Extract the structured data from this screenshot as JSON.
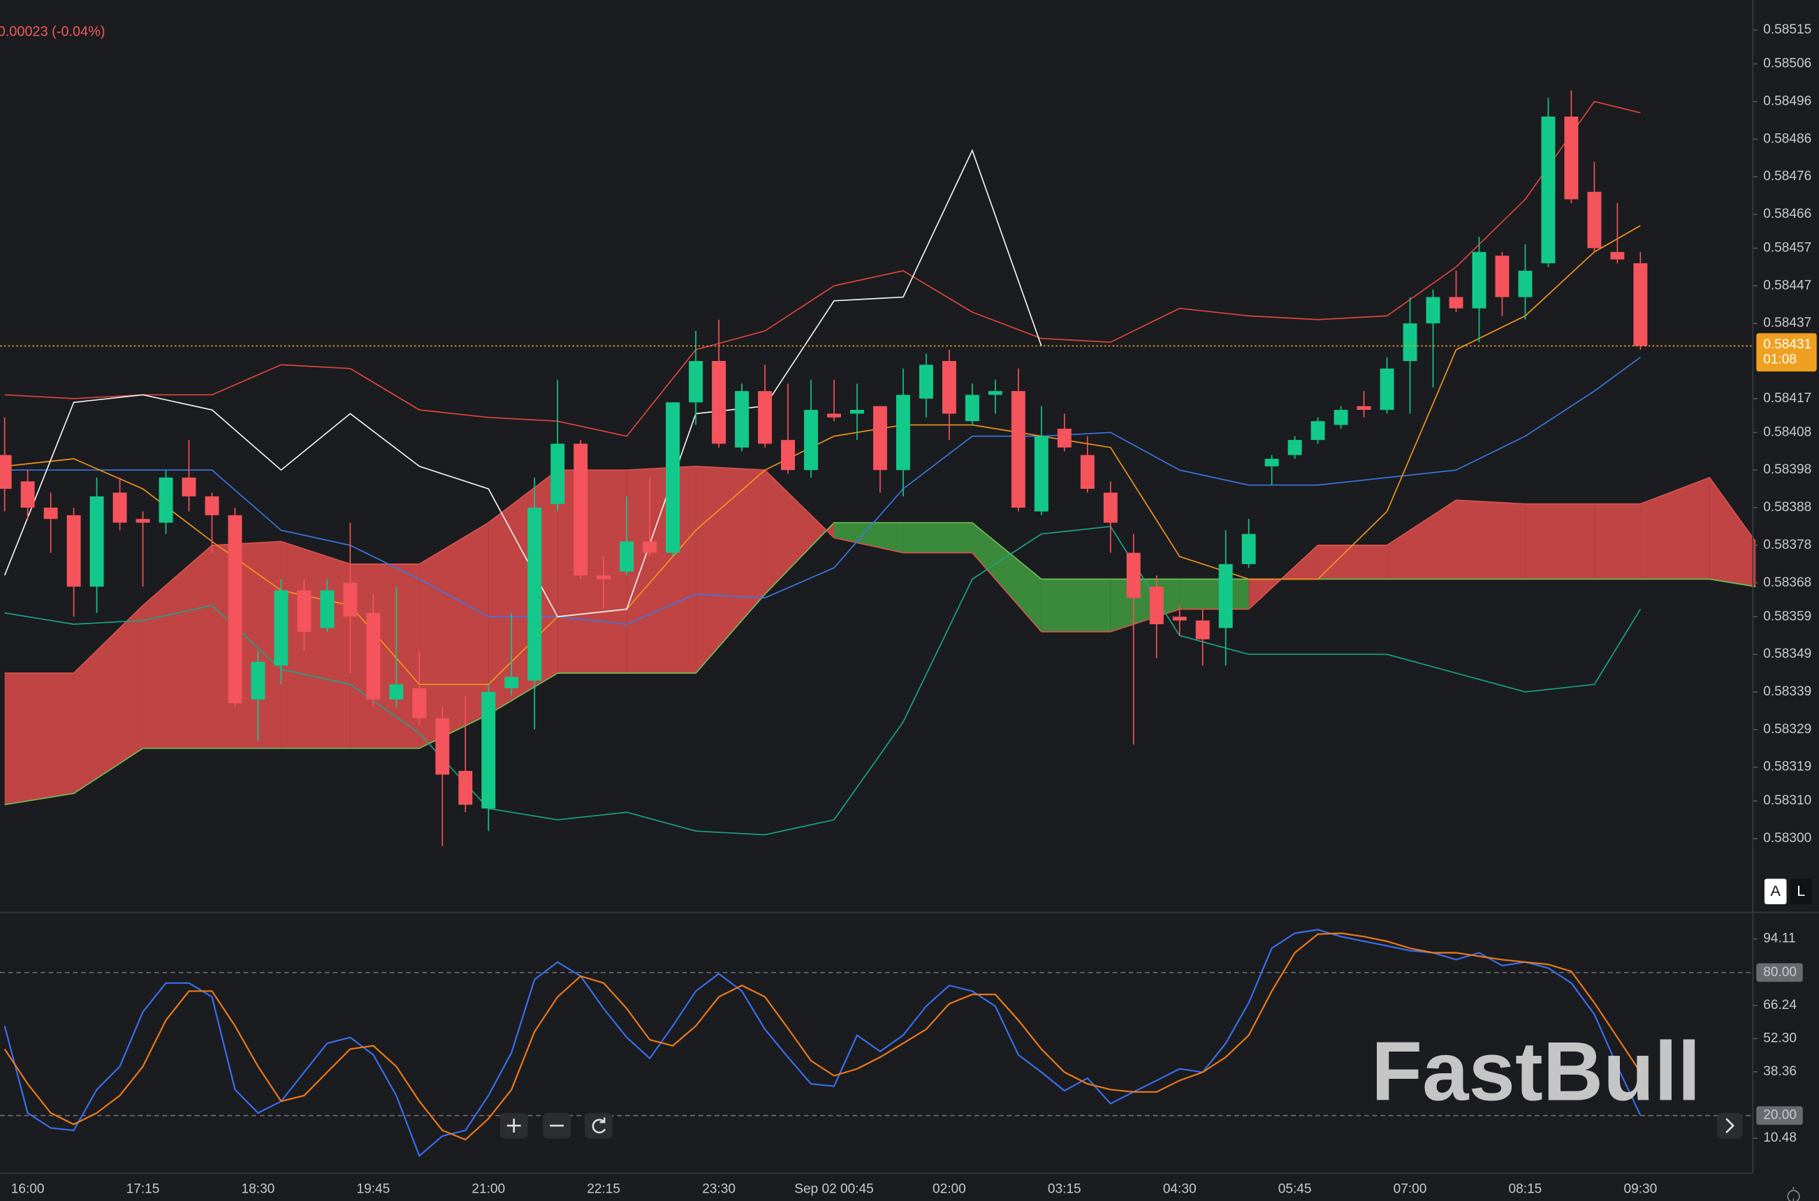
{
  "header": {
    "change": "0.00023 (-0.04%)"
  },
  "watermark": "FastBull",
  "scale_buttons": [
    "A",
    "L"
  ],
  "chart_data": [
    {
      "type": "candlestick",
      "categories": [
        null,
        "16:00",
        null,
        null,
        null,
        null,
        "17:15",
        null,
        null,
        null,
        null,
        "18:30",
        null,
        null,
        null,
        null,
        "19:45",
        null,
        null,
        null,
        null,
        "21:00",
        null,
        null,
        null,
        null,
        "22:15",
        null,
        null,
        null,
        null,
        "23:30",
        null,
        null,
        null,
        null,
        "Sep 02 00:45",
        null,
        null,
        null,
        null,
        "02:00",
        null,
        null,
        null,
        null,
        "03:15",
        null,
        null,
        null,
        null,
        "04:30",
        null,
        null,
        null,
        null,
        "05:45",
        null,
        null,
        null,
        null,
        "07:00",
        null,
        null,
        null,
        null,
        "08:15",
        null,
        null,
        null,
        null,
        "09:30"
      ],
      "open": [
        0.58402,
        0.58395,
        0.58388,
        0.58386,
        0.58367,
        0.58392,
        0.58385,
        0.58384,
        0.58396,
        0.58391,
        0.58386,
        0.58337,
        0.58346,
        0.58366,
        0.58356,
        0.58368,
        0.5836,
        0.58337,
        0.5834,
        0.58332,
        0.58318,
        0.58308,
        0.5834,
        0.58342,
        0.58389,
        0.58405,
        0.5837,
        0.58371,
        0.58379,
        0.58376,
        0.58416,
        0.58427,
        0.58404,
        0.58419,
        0.58406,
        0.58398,
        0.58413,
        0.58413,
        0.58415,
        0.58398,
        0.58417,
        0.58427,
        0.58411,
        0.58418,
        0.58419,
        0.58387,
        0.58409,
        0.58402,
        0.58392,
        0.58376,
        0.58367,
        0.58359,
        0.58358,
        0.58356,
        0.58373,
        0.58399,
        0.58402,
        0.58406,
        0.5841,
        0.58415,
        0.58414,
        0.58427,
        0.58437,
        0.58444,
        0.58441,
        0.58455,
        0.58444,
        0.58453,
        0.58492,
        0.58472,
        0.58456,
        0.58453
      ],
      "high": [
        0.58412,
        0.58398,
        0.58392,
        0.58388,
        0.58396,
        0.58396,
        0.58387,
        0.58398,
        0.58406,
        0.58392,
        0.58388,
        0.5835,
        0.58369,
        0.58369,
        0.58369,
        0.58384,
        0.58365,
        0.58367,
        0.5835,
        0.58335,
        0.58338,
        0.58341,
        0.5836,
        0.58396,
        0.58422,
        0.58406,
        0.58375,
        0.58391,
        0.58396,
        0.58416,
        0.58435,
        0.58438,
        0.58421,
        0.58426,
        0.58421,
        0.58422,
        0.58422,
        0.58421,
        0.58415,
        0.58425,
        0.58429,
        0.5843,
        0.58421,
        0.58422,
        0.58425,
        0.58415,
        0.58413,
        0.58407,
        0.58395,
        0.58381,
        0.5837,
        0.58362,
        0.58361,
        0.58382,
        0.58385,
        0.58402,
        0.58407,
        0.58412,
        0.58415,
        0.58419,
        0.58428,
        0.58444,
        0.58446,
        0.58451,
        0.5846,
        0.58456,
        0.58458,
        0.58497,
        0.58499,
        0.5848,
        0.58469,
        0.58456
      ],
      "low": [
        0.58387,
        0.58385,
        0.58376,
        0.58359,
        0.5836,
        0.58382,
        0.58367,
        0.58381,
        0.58387,
        0.58376,
        0.58335,
        0.58326,
        0.58341,
        0.5835,
        0.58355,
        0.58344,
        0.58335,
        0.58335,
        0.5833,
        0.58298,
        0.58307,
        0.58302,
        0.58338,
        0.58329,
        0.58387,
        0.58369,
        0.58361,
        0.5837,
        0.58375,
        0.58375,
        0.5841,
        0.58404,
        0.58403,
        0.58404,
        0.58397,
        0.58396,
        0.58411,
        0.58406,
        0.58392,
        0.58391,
        0.58412,
        0.58406,
        0.5841,
        0.58413,
        0.58387,
        0.58386,
        0.58403,
        0.58392,
        0.58376,
        0.58325,
        0.58348,
        0.58354,
        0.58346,
        0.58346,
        0.58372,
        0.58394,
        0.58401,
        0.58405,
        0.58409,
        0.58412,
        0.58413,
        0.58413,
        0.5842,
        0.5844,
        0.58432,
        0.58439,
        0.58438,
        0.58452,
        0.58469,
        0.58456,
        0.58453,
        0.5843
      ],
      "close": [
        0.58393,
        0.58388,
        0.58385,
        0.58367,
        0.58391,
        0.58384,
        0.58384,
        0.58396,
        0.58391,
        0.58386,
        0.58336,
        0.58347,
        0.58366,
        0.58355,
        0.58366,
        0.58359,
        0.58337,
        0.58341,
        0.58332,
        0.58317,
        0.58309,
        0.58339,
        0.58343,
        0.58388,
        0.58405,
        0.5837,
        0.58369,
        0.58379,
        0.58376,
        0.58416,
        0.58427,
        0.58405,
        0.58419,
        0.58405,
        0.58398,
        0.58414,
        0.58412,
        0.58414,
        0.58398,
        0.58418,
        0.58426,
        0.58413,
        0.58418,
        0.58419,
        0.58388,
        0.58407,
        0.58404,
        0.58393,
        0.58384,
        0.58364,
        0.58357,
        0.58358,
        0.58353,
        0.58373,
        0.58381,
        0.58401,
        0.58406,
        0.58411,
        0.58414,
        0.58414,
        0.58425,
        0.58437,
        0.58444,
        0.58441,
        0.58456,
        0.58444,
        0.58451,
        0.58492,
        0.5847,
        0.58457,
        0.58454,
        0.58431
      ],
      "up_color": "#13c98a",
      "down_color": "#f5545c",
      "overlay_x": [
        0,
        3,
        6,
        9,
        12,
        15,
        18,
        21,
        24,
        27,
        30,
        33,
        36,
        39,
        42,
        45,
        48,
        51,
        54,
        57,
        60,
        63,
        66,
        69,
        71,
        74,
        76
      ],
      "lines": [
        {
          "color": "#e0463e",
          "values": [
            0.58418,
            0.58417,
            0.58418,
            0.58418,
            0.58426,
            0.58425,
            0.58414,
            0.58412,
            0.58411,
            0.58407,
            0.5843,
            0.58435,
            0.58447,
            0.58451,
            0.5844,
            0.58433,
            0.58432,
            0.58441,
            0.58439,
            0.58438,
            0.58439,
            0.58452,
            0.5847,
            0.58496,
            0.58493,
            null,
            null
          ]
        },
        {
          "color": "#1aa58a",
          "values": [
            0.5836,
            0.58357,
            0.58358,
            0.58362,
            0.58345,
            0.58341,
            0.58328,
            0.58308,
            0.58305,
            0.58307,
            0.58302,
            0.58301,
            0.58305,
            0.58331,
            0.58369,
            0.58381,
            0.58383,
            0.58354,
            0.58349,
            0.58349,
            0.58349,
            0.58344,
            0.58339,
            0.58341,
            0.58361,
            null,
            null
          ]
        },
        {
          "color": "#3a78e6",
          "values": [
            0.58398,
            0.58398,
            0.58398,
            0.58398,
            0.58382,
            0.58378,
            0.58369,
            0.58359,
            0.58359,
            0.58357,
            0.58365,
            0.58364,
            0.58372,
            0.58393,
            0.58407,
            0.58407,
            0.58408,
            0.58398,
            0.58394,
            0.58394,
            0.58396,
            0.58398,
            0.58407,
            0.58419,
            0.58428,
            null,
            null
          ]
        },
        {
          "color": "#f0961e",
          "values": [
            0.58399,
            0.58401,
            0.58393,
            0.58379,
            0.58366,
            0.58362,
            0.58341,
            0.58341,
            0.58359,
            0.58361,
            0.58382,
            0.58398,
            0.58407,
            0.5841,
            0.5841,
            0.58407,
            0.58404,
            0.58375,
            0.58369,
            0.58369,
            0.58387,
            0.5843,
            0.58439,
            0.58456,
            0.58463,
            null,
            null
          ]
        },
        {
          "color": "#f2f2f2",
          "values": [
            0.5837,
            0.58416,
            0.58418,
            0.58414,
            0.58398,
            0.58413,
            0.58399,
            0.58393,
            0.58359,
            0.58361,
            0.58413,
            0.58415,
            0.58443,
            0.58444,
            0.58483,
            0.58431,
            null,
            null,
            null,
            null,
            null,
            null,
            null,
            null,
            null,
            null,
            null
          ]
        }
      ],
      "cloud": {
        "up_color": "#3d8f3d",
        "down_color": "#c94747",
        "span_a": [
          0.58309,
          0.58312,
          0.58324,
          0.58324,
          0.58324,
          0.58324,
          0.58324,
          0.58333,
          0.58344,
          0.58344,
          0.58344,
          0.58365,
          0.58384,
          0.58384,
          0.58384,
          0.58369,
          0.58369,
          0.58369,
          0.58369,
          0.58369,
          0.58369,
          0.58369,
          0.58369,
          0.58369,
          0.58369,
          0.58369,
          0.58367
        ],
        "span_b": [
          0.58344,
          0.58344,
          0.58362,
          0.58378,
          0.58379,
          0.58373,
          0.58373,
          0.58384,
          0.58398,
          0.58398,
          0.58399,
          0.58398,
          0.5838,
          0.58376,
          0.58376,
          0.58355,
          0.58355,
          0.58361,
          0.58361,
          0.58378,
          0.58378,
          0.5839,
          0.58389,
          0.58389,
          0.58389,
          0.58396,
          0.58379
        ]
      },
      "ylim": [
        0.58281,
        0.58523
      ],
      "yticks": [
        0.58515,
        0.58506,
        0.58496,
        0.58486,
        0.58476,
        0.58466,
        0.58457,
        0.58447,
        0.58437,
        0.58417,
        0.58408,
        0.58398,
        0.58388,
        0.58378,
        0.58368,
        0.58359,
        0.58349,
        0.58339,
        0.58329,
        0.58319,
        {
          "value": 0.5831,
          "label": "0.58310"
        },
        {
          "value": 0.583,
          "label": "0.58300"
        }
      ],
      "last_price": {
        "value": 0.58431,
        "label": "0.58431",
        "color": "#f0a020"
      },
      "countdown": "01:08"
    },
    {
      "type": "line",
      "series": [
        {
          "color": "#3a6ff0",
          "values": [
            57.6,
            21.1,
            14.8,
            13.8,
            30.9,
            40.6,
            63.5,
            75.6,
            75.6,
            69.8,
            30.9,
            21.1,
            26.0,
            38.2,
            50.3,
            52.8,
            45.5,
            28.4,
            3.1,
            11.4,
            13.8,
            28.4,
            46.4,
            77.1,
            84.4,
            78.5,
            64.9,
            52.8,
            44.0,
            57.6,
            72.2,
            79.5,
            72.2,
            56.2,
            44.5,
            33.3,
            32.3,
            53.7,
            46.9,
            53.7,
            65.9,
            74.6,
            72.2,
            65.9,
            45.5,
            38.2,
            30.4,
            35.7,
            25.0,
            29.9,
            34.7,
            39.6,
            38.2,
            50.3,
            67.3,
            90.2,
            96.5,
            98.0,
            95.1,
            93.1,
            91.2,
            89.2,
            88.3,
            85.4,
            88.3,
            82.9,
            84.4,
            81.9,
            75.6,
            62.5,
            40.6,
            20.1
          ]
        },
        {
          "color": "#ee7a1a",
          "values": [
            47.9,
            33.3,
            21.1,
            16.3,
            21.1,
            28.4,
            40.6,
            60.0,
            72.2,
            72.2,
            57.6,
            40.6,
            26.0,
            28.4,
            38.2,
            47.9,
            49.3,
            40.6,
            26.0,
            13.8,
            9.9,
            18.7,
            30.9,
            55.2,
            69.8,
            78.5,
            75.6,
            64.9,
            51.8,
            49.3,
            57.6,
            69.8,
            74.6,
            69.8,
            56.6,
            43.0,
            36.7,
            39.6,
            44.5,
            50.3,
            56.2,
            66.9,
            70.8,
            70.8,
            60.0,
            47.9,
            38.2,
            33.3,
            30.9,
            29.9,
            29.9,
            34.7,
            38.2,
            44.5,
            53.7,
            72.2,
            88.3,
            96.1,
            96.5,
            95.1,
            93.1,
            90.2,
            88.3,
            88.3,
            86.8,
            85.4,
            84.4,
            83.4,
            80.5,
            67.3,
            52.8,
            38.2
          ]
        }
      ],
      "ylim": [
        -3.2,
        103.8
      ],
      "yticks": [
        94.11,
        {
          "value": 80,
          "label": "80.00",
          "level": true
        },
        66.24,
        {
          "value": 52.3,
          "label": "52.30"
        },
        38.36,
        {
          "value": 20,
          "label": "20.00",
          "level": true
        },
        10.48
      ]
    }
  ]
}
